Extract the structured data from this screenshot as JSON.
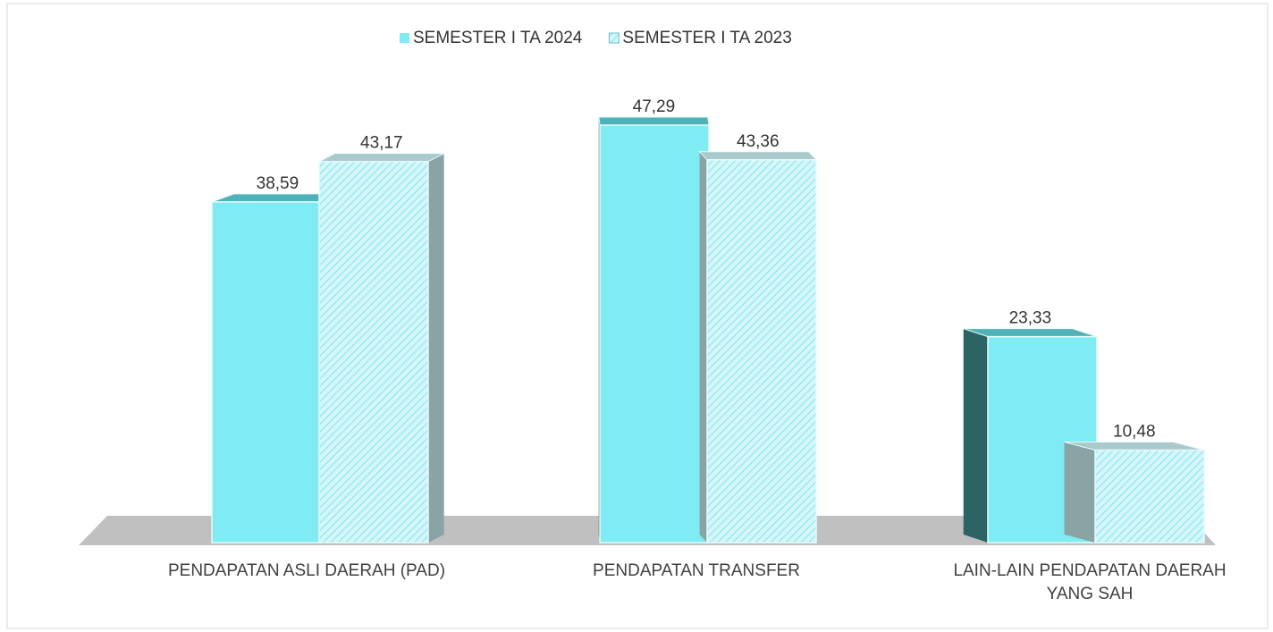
{
  "chart_data": {
    "type": "bar",
    "categories": [
      "PENDAPATAN ASLI DAERAH (PAD)",
      "PENDAPATAN TRANSFER",
      "LAIN-LAIN PENDAPATAN DAERAH YANG SAH"
    ],
    "series": [
      {
        "name": "SEMESTER I TA 2024",
        "color": "#7eecf2",
        "values": [
          38.59,
          47.29,
          23.33
        ],
        "value_labels": [
          "38,59",
          "47,29",
          "23,33"
        ]
      },
      {
        "name": "SEMESTER I TA 2023",
        "color": "#d6f7fa",
        "values": [
          43.17,
          43.36,
          10.48
        ],
        "value_labels": [
          "43,17",
          "43,36",
          "10,48"
        ]
      }
    ],
    "legend": "top"
  }
}
